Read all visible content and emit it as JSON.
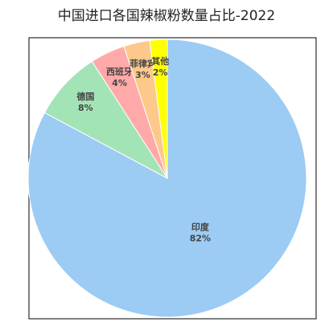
{
  "chart_data": {
    "type": "pie",
    "title": "中国进口各国辣椒粉数量占比-2022",
    "categories": [
      "印度",
      "德国",
      "西班牙",
      "菲律宾",
      "其他"
    ],
    "values": [
      82,
      8,
      4,
      3,
      2
    ],
    "value_labels": [
      "82%",
      "8%",
      "4%",
      "3%",
      "2%"
    ],
    "colors": [
      "#9ccbf3",
      "#a3e4b6",
      "#ffa9a9",
      "#fdc98b",
      "#ffff00"
    ]
  }
}
